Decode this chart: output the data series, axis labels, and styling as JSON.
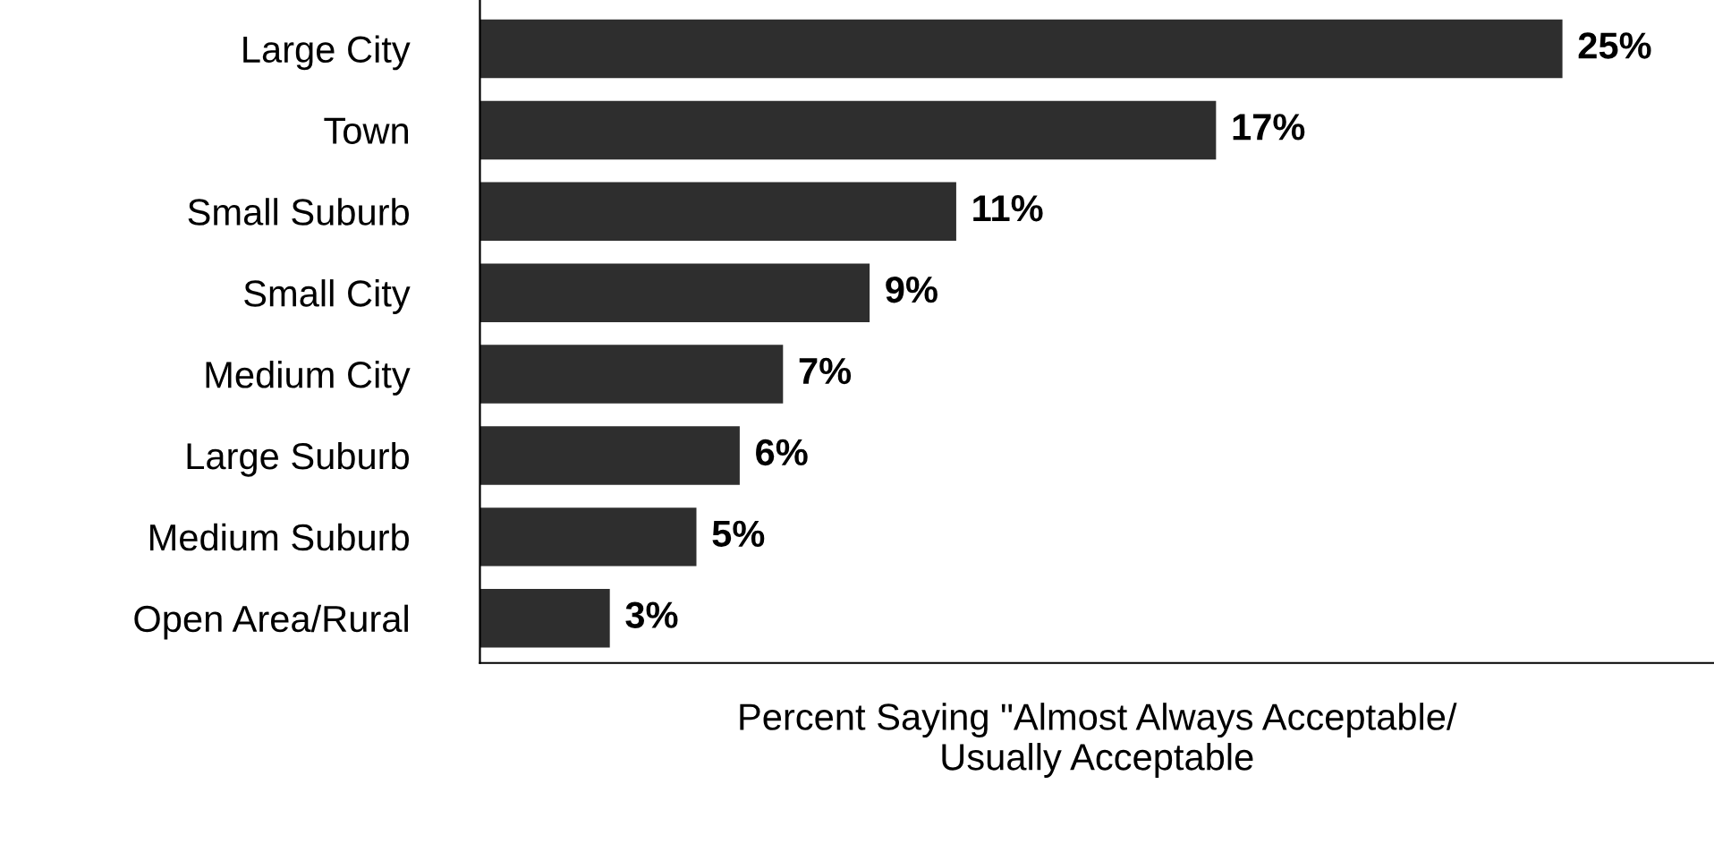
{
  "chart_data": {
    "type": "bar",
    "orientation": "horizontal",
    "categories": [
      "Large City",
      "Town",
      "Small Suburb",
      "Small City",
      "Medium City",
      "Large Suburb",
      "Medium Suburb",
      "Open Area/Rural"
    ],
    "values": [
      25,
      17,
      11,
      9,
      7,
      6,
      5,
      3
    ],
    "value_labels": [
      "25%",
      "17%",
      "11%",
      "9%",
      "7%",
      "6%",
      "5%",
      "3%"
    ],
    "color": "#2e2e2e",
    "xlabel": "Percent Saying \"Almost Always Acceptable/\nUsually Acceptable",
    "grid": false,
    "legend": false
  }
}
